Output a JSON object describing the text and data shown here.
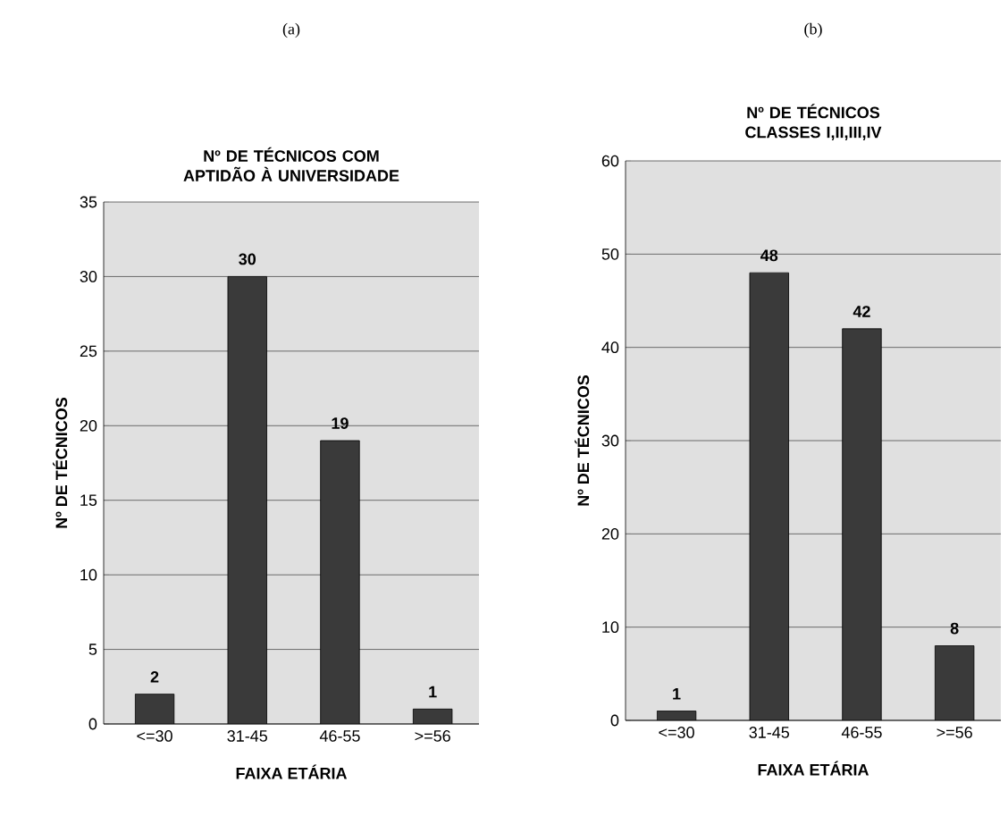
{
  "chart_data": [
    {
      "type": "bar",
      "annotations": [
        "(a)"
      ],
      "title": "Nº DE TÉCNICOS COM APTIDÃO À UNIVERSIDADE",
      "xlabel": "FAIXA ETÁRIA",
      "ylabel": "Nº DE TÉCNICOS",
      "categories": [
        "<=30",
        "31-45",
        "46-55",
        ">=56"
      ],
      "values": [
        2,
        30,
        19,
        1
      ],
      "color": "#3a3a3a",
      "ylim": [
        0,
        35
      ],
      "yticks": [
        0,
        5,
        10,
        15,
        20,
        25,
        30,
        35
      ],
      "grid": "y",
      "data_labels": true
    },
    {
      "type": "bar",
      "annotations": [
        "(b)"
      ],
      "title": "Nº DE TÉCNICOS CLASSES I,II,III,IV",
      "xlabel": "FAIXA ETÁRIA",
      "ylabel": "Nº DE TÉCNICOS",
      "categories": [
        "<=30",
        "31-45",
        "46-55",
        ">=56"
      ],
      "values": [
        1,
        48,
        42,
        8
      ],
      "color": "#3a3a3a",
      "ylim": [
        0,
        60
      ],
      "yticks": [
        0,
        10,
        20,
        30,
        40,
        50,
        60
      ],
      "grid": "y",
      "data_labels": true
    }
  ]
}
